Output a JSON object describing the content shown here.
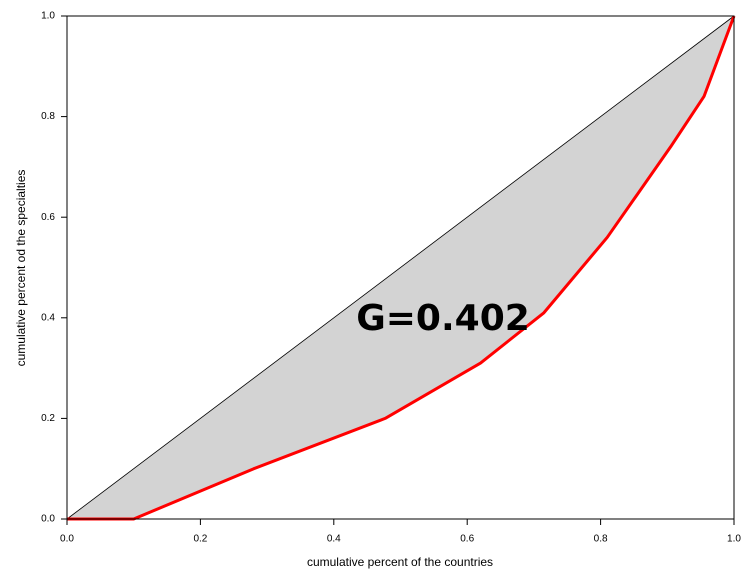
{
  "chart_data": {
    "type": "line",
    "xlabel": "cumulative percent of the countries",
    "ylabel": "cumulative percent od the specialties",
    "annotation": "G=0.402",
    "fill_color": "#d3d3d3",
    "series": [
      {
        "color": "#000000",
        "x": [
          0,
          1
        ],
        "values": [
          0,
          1
        ]
      },
      {
        "color": "#ff0000",
        "x": [
          0,
          0.1,
          0.28,
          0.477,
          0.62,
          0.715,
          0.81,
          0.905,
          0.955,
          1
        ],
        "values": [
          0,
          0,
          0.1,
          0.2,
          0.31,
          0.41,
          0.56,
          0.74,
          0.84,
          1
        ]
      }
    ],
    "xlim": [
      0,
      1
    ],
    "ylim": [
      0,
      1
    ],
    "xticks": [
      {
        "value": 0,
        "label": "0.0"
      },
      {
        "value": 0.2,
        "label": "0.2"
      },
      {
        "value": 0.4,
        "label": "0.4"
      },
      {
        "value": 0.6,
        "label": "0.6"
      },
      {
        "value": 0.8,
        "label": "0.8"
      },
      {
        "value": 1,
        "label": "1.0"
      }
    ],
    "yticks": [
      {
        "value": 0,
        "label": "0.0"
      },
      {
        "value": 0.2,
        "label": "0.2"
      },
      {
        "value": 0.4,
        "label": "0.4"
      },
      {
        "value": 0.6,
        "label": "0.6"
      },
      {
        "value": 0.8,
        "label": "0.8"
      },
      {
        "value": 1,
        "label": "1.0"
      }
    ]
  }
}
